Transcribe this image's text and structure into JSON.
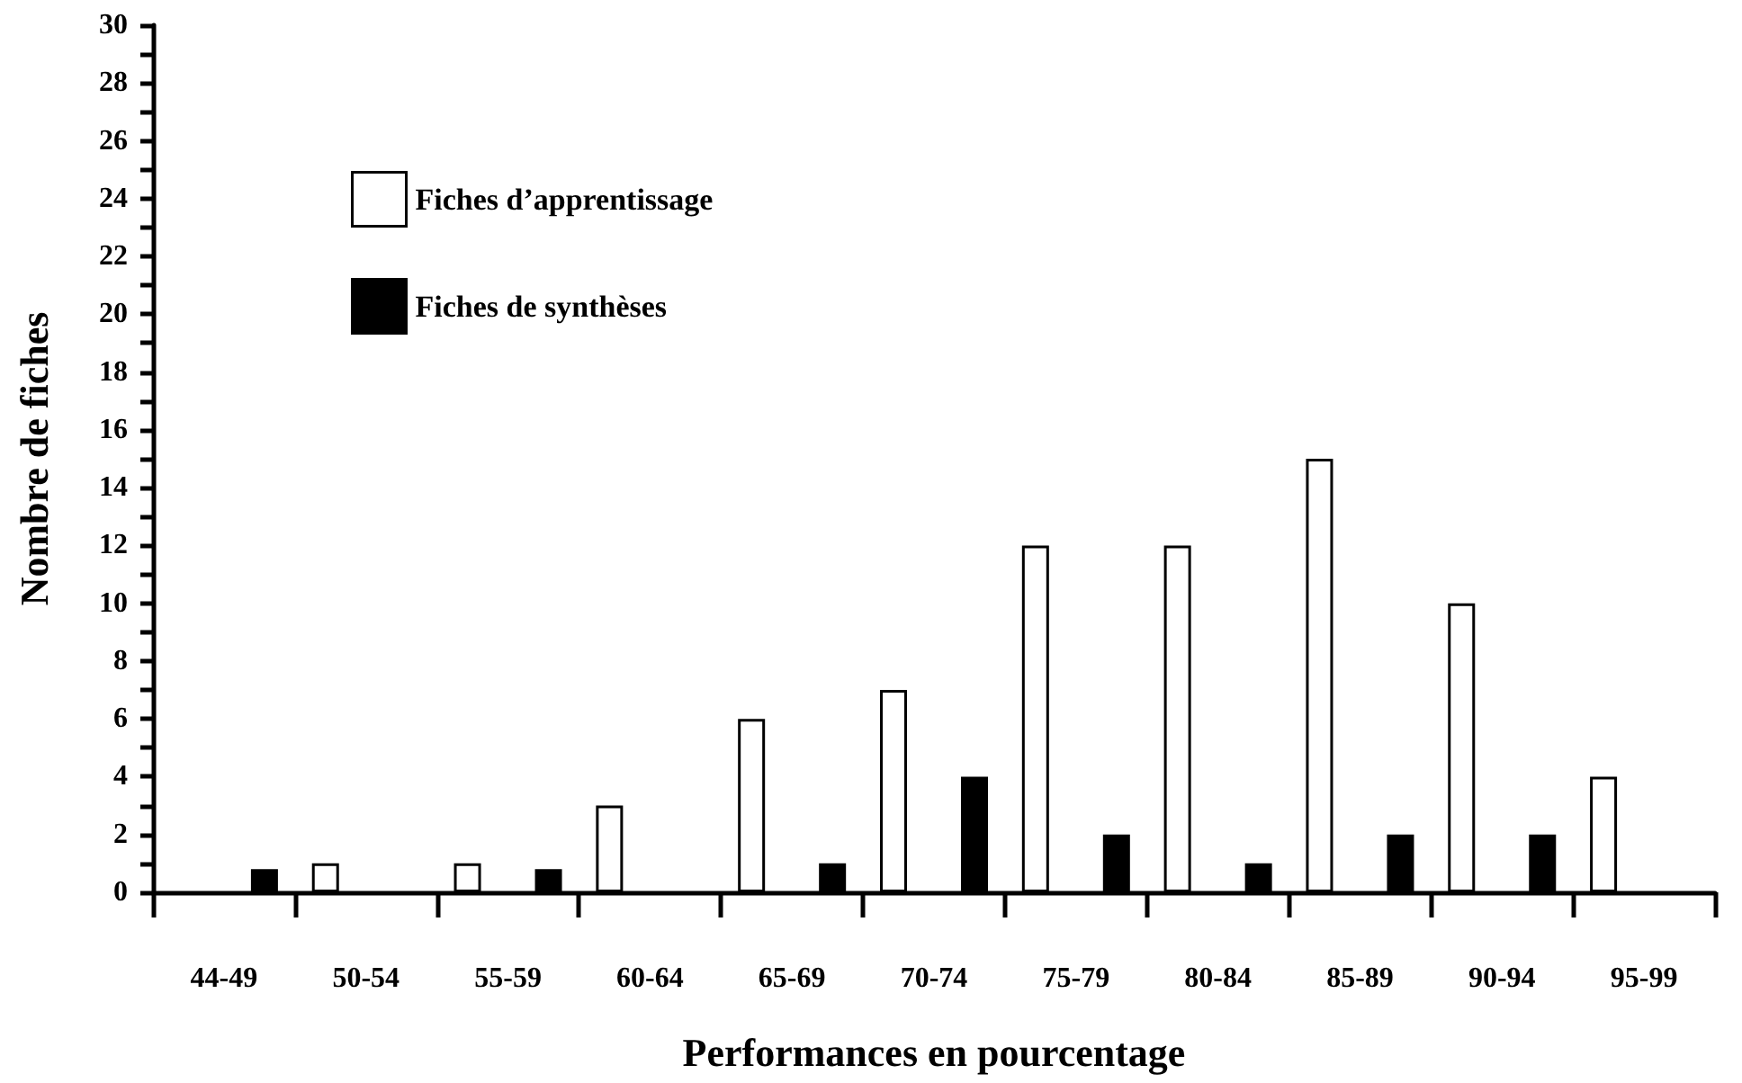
{
  "chart_data": {
    "type": "bar",
    "xlabel": "Performances en pourcentage",
    "ylabel": "Nombre de fiches",
    "categories": [
      "44-49",
      "50-54",
      "55-59",
      "60-64",
      "65-69",
      "70-74",
      "75-79",
      "80-84",
      "85-89",
      "90-94",
      "95-99"
    ],
    "series": [
      {
        "name": "Fiches d’apprentissage",
        "color": "#ffffff",
        "values": [
          0,
          1,
          1,
          3,
          6,
          7,
          12,
          12,
          15,
          10,
          4
        ]
      },
      {
        "name": "Fiches de synthèses",
        "color": "#000000",
        "values": [
          0.8,
          0,
          0.8,
          0,
          1,
          4,
          2,
          1,
          2,
          2,
          0
        ]
      }
    ],
    "ylim": [
      0,
      30
    ],
    "yticks": [
      0,
      2,
      4,
      6,
      8,
      10,
      12,
      14,
      16,
      18,
      20,
      22,
      24,
      26,
      28,
      30
    ],
    "grid": false,
    "legend": "top left"
  }
}
